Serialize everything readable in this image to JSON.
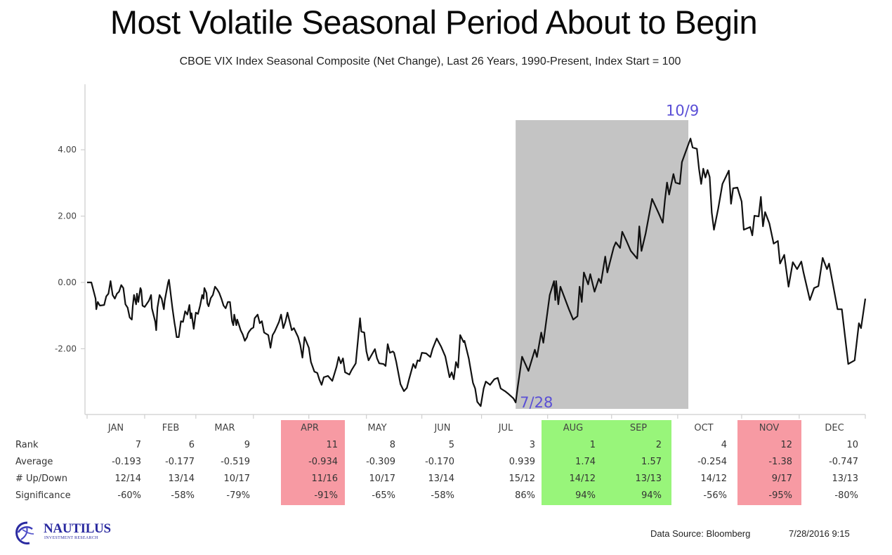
{
  "header": {
    "title": "Most Volatile Seasonal Period About to Begin",
    "subtitle": "CBOE VIX Index Seasonal Composite (Net Change), Last 26 Years, 1990-Present, Index Start = 100"
  },
  "chart_data": {
    "type": "line",
    "title": "Most Volatile Seasonal Period About to Begin",
    "subtitle": "CBOE VIX Index Seasonal Composite (Net Change), Last 26 Years, 1990-Present, Index Start = 100",
    "xlabel": "",
    "ylabel": "",
    "x_unit": "day of year",
    "xlim": [
      0,
      365
    ],
    "ylim": [
      -4.0,
      5.8
    ],
    "yticks": [
      4.0,
      2.0,
      0.0,
      -2.0
    ],
    "ytick_labels": [
      "4.00",
      "2.00",
      "0.00",
      "-2.00"
    ],
    "month_ticks": [
      0,
      27,
      51,
      78,
      104,
      131,
      157,
      185,
      216,
      246,
      277,
      307,
      334,
      365
    ],
    "grid": false,
    "legend": "none",
    "line_color": "#111111",
    "shaded_range": {
      "start_day": 201,
      "end_day": 282,
      "color": "#c4c4c4"
    },
    "annotations": [
      {
        "text": "7/28",
        "day": 201,
        "value": -3.6,
        "color": "#5a4fd6"
      },
      {
        "text": "10/9",
        "day": 282,
        "value": 5.2,
        "color": "#5a4fd6"
      }
    ],
    "series": [
      {
        "name": "VIX Seasonal Composite",
        "points": [
          [
            0,
            0.0
          ],
          [
            2,
            0.0
          ],
          [
            4,
            -0.49
          ],
          [
            4.3,
            -0.81
          ],
          [
            5,
            -0.59
          ],
          [
            6,
            -0.7
          ],
          [
            8,
            -0.68
          ],
          [
            9,
            -0.42
          ],
          [
            10,
            -0.34
          ],
          [
            11,
            0.04
          ],
          [
            12,
            -0.38
          ],
          [
            13,
            -0.49
          ],
          [
            14,
            -0.34
          ],
          [
            15,
            -0.28
          ],
          [
            16,
            -0.08
          ],
          [
            17,
            -0.17
          ],
          [
            18,
            -0.66
          ],
          [
            19,
            -0.76
          ],
          [
            20,
            -1.06
          ],
          [
            21,
            -1.12
          ],
          [
            21.4,
            -0.72
          ],
          [
            22,
            -0.38
          ],
          [
            23,
            -0.66
          ],
          [
            23.4,
            -0.34
          ],
          [
            24,
            -0.59
          ],
          [
            25,
            -0.17
          ],
          [
            25.4,
            -0.23
          ],
          [
            26,
            -0.7
          ],
          [
            27,
            -0.74
          ],
          [
            29,
            -0.55
          ],
          [
            30,
            -0.38
          ],
          [
            30.4,
            -0.78
          ],
          [
            32,
            -1.19
          ],
          [
            32.4,
            -1.44
          ],
          [
            33,
            -0.76
          ],
          [
            34,
            -0.38
          ],
          [
            35,
            -0.49
          ],
          [
            36,
            -0.81
          ],
          [
            36.4,
            -0.55
          ],
          [
            38,
            0.0
          ],
          [
            38.4,
            0.08
          ],
          [
            40,
            -0.76
          ],
          [
            41,
            -1.23
          ],
          [
            41.4,
            -1.38
          ],
          [
            42,
            -1.65
          ],
          [
            43,
            -1.65
          ],
          [
            44,
            -1.17
          ],
          [
            45,
            -1.19
          ],
          [
            46,
            -0.87
          ],
          [
            47,
            -0.97
          ],
          [
            48,
            -0.68
          ],
          [
            48.6,
            -1.08
          ],
          [
            49,
            -0.93
          ],
          [
            50,
            -1.4
          ],
          [
            51,
            -0.91
          ],
          [
            52,
            -0.95
          ],
          [
            53,
            -0.7
          ],
          [
            54,
            -0.38
          ],
          [
            54.6,
            -0.49
          ],
          [
            55,
            -0.17
          ],
          [
            56,
            -0.32
          ],
          [
            56.4,
            -0.63
          ],
          [
            57,
            -0.72
          ],
          [
            58,
            -0.47
          ],
          [
            59,
            -0.38
          ],
          [
            60,
            -0.13
          ],
          [
            61,
            -0.21
          ],
          [
            62,
            -0.32
          ],
          [
            63,
            -0.49
          ],
          [
            64,
            -0.7
          ],
          [
            65,
            -0.78
          ],
          [
            66,
            -0.59
          ],
          [
            67,
            -0.59
          ],
          [
            68,
            -1.17
          ],
          [
            68.6,
            -1.29
          ],
          [
            69,
            -0.97
          ],
          [
            70,
            -1.29
          ],
          [
            70.4,
            -1.12
          ],
          [
            71,
            -1.23
          ],
          [
            72,
            -1.44
          ],
          [
            73,
            -1.57
          ],
          [
            74,
            -1.76
          ],
          [
            75,
            -1.65
          ],
          [
            75.4,
            -1.55
          ],
          [
            76,
            -1.48
          ],
          [
            77,
            -1.4
          ],
          [
            78,
            -1.36
          ],
          [
            78.6,
            -1.08
          ],
          [
            80,
            -0.97
          ],
          [
            81,
            -1.23
          ],
          [
            82,
            -1.17
          ],
          [
            83,
            -1.51
          ],
          [
            85,
            -1.59
          ],
          [
            86,
            -1.97
          ],
          [
            87,
            -1.59
          ],
          [
            88,
            -1.48
          ],
          [
            90,
            -1.19
          ],
          [
            91,
            -0.97
          ],
          [
            92,
            -1.38
          ],
          [
            93,
            -1.19
          ],
          [
            94,
            -0.91
          ],
          [
            96,
            -1.44
          ],
          [
            97,
            -1.38
          ],
          [
            99,
            -1.65
          ],
          [
            100,
            -1.89
          ],
          [
            101,
            -2.27
          ],
          [
            102,
            -1.65
          ],
          [
            104,
            -1.97
          ],
          [
            105,
            -2.4
          ],
          [
            106.6,
            -2.69
          ],
          [
            108,
            -2.73
          ],
          [
            109,
            -2.94
          ],
          [
            110,
            -3.09
          ],
          [
            111,
            -2.86
          ],
          [
            113,
            -2.82
          ],
          [
            115,
            -2.97
          ],
          [
            117,
            -2.54
          ],
          [
            118,
            -2.25
          ],
          [
            119,
            -2.44
          ],
          [
            120,
            -2.29
          ],
          [
            121,
            -2.71
          ],
          [
            123,
            -2.78
          ],
          [
            124,
            -2.65
          ],
          [
            126,
            -2.44
          ],
          [
            128,
            -1.08
          ],
          [
            128.6,
            -1.48
          ],
          [
            130,
            -1.51
          ],
          [
            131,
            -2.08
          ],
          [
            132,
            -2.35
          ],
          [
            135,
            -2.01
          ],
          [
            136,
            -2.29
          ],
          [
            137,
            -2.44
          ],
          [
            139,
            -2.46
          ],
          [
            140,
            -2.52
          ],
          [
            141,
            -1.86
          ],
          [
            142,
            -2.12
          ],
          [
            143.4,
            -2.08
          ],
          [
            144,
            -2.12
          ],
          [
            145,
            -2.4
          ],
          [
            147,
            -3.07
          ],
          [
            148.6,
            -3.28
          ],
          [
            150,
            -3.18
          ],
          [
            151,
            -2.92
          ],
          [
            153,
            -2.46
          ],
          [
            154,
            -2.58
          ],
          [
            155,
            -2.35
          ],
          [
            156,
            -2.37
          ],
          [
            157,
            -2.12
          ],
          [
            159,
            -2.14
          ],
          [
            161,
            -2.25
          ],
          [
            162,
            -2.01
          ],
          [
            164,
            -1.69
          ],
          [
            166,
            -1.93
          ],
          [
            168,
            -2.23
          ],
          [
            170,
            -2.86
          ],
          [
            171,
            -2.71
          ],
          [
            172,
            -2.92
          ],
          [
            173,
            -2.4
          ],
          [
            174,
            -2.57
          ],
          [
            175,
            -1.59
          ],
          [
            176.6,
            -1.8
          ],
          [
            177,
            -1.76
          ],
          [
            179,
            -2.29
          ],
          [
            181,
            -3.03
          ],
          [
            182,
            -3.2
          ],
          [
            183,
            -3.6
          ],
          [
            184.6,
            -3.73
          ],
          [
            186,
            -3.2
          ],
          [
            187,
            -2.99
          ],
          [
            189,
            -3.09
          ],
          [
            191,
            -2.92
          ],
          [
            192.6,
            -2.88
          ],
          [
            194,
            -3.2
          ],
          [
            196,
            -3.28
          ],
          [
            197.4,
            -3.35
          ],
          [
            200,
            -3.5
          ],
          [
            201,
            -3.62
          ],
          [
            202,
            -3.14
          ],
          [
            204,
            -2.24
          ],
          [
            207,
            -2.67
          ],
          [
            210,
            -2.03
          ],
          [
            211,
            -2.25
          ],
          [
            213,
            -1.51
          ],
          [
            214,
            -1.82
          ],
          [
            217,
            -0.38
          ],
          [
            219,
            0.04
          ],
          [
            219.6,
            -0.53
          ],
          [
            220,
            0.04
          ],
          [
            221,
            -0.66
          ],
          [
            222,
            -0.13
          ],
          [
            226,
            -0.81
          ],
          [
            228,
            -1.12
          ],
          [
            230,
            -1.02
          ],
          [
            231,
            -0.13
          ],
          [
            232,
            -0.59
          ],
          [
            233,
            0.3
          ],
          [
            235,
            -0.06
          ],
          [
            236,
            0.25
          ],
          [
            238,
            -0.28
          ],
          [
            240,
            0.11
          ],
          [
            241,
            -0.02
          ],
          [
            243,
            0.78
          ],
          [
            244,
            0.3
          ],
          [
            247,
            1.06
          ],
          [
            248,
            1.21
          ],
          [
            250,
            1.04
          ],
          [
            251,
            1.53
          ],
          [
            253,
            1.25
          ],
          [
            255,
            0.95
          ],
          [
            258,
            0.72
          ],
          [
            259,
            1.69
          ],
          [
            260,
            0.95
          ],
          [
            262,
            1.48
          ],
          [
            265,
            2.52
          ],
          [
            268,
            2.1
          ],
          [
            270,
            1.8
          ],
          [
            271,
            2.48
          ],
          [
            272,
            3.01
          ],
          [
            273,
            2.65
          ],
          [
            275,
            3.27
          ],
          [
            276,
            3.01
          ],
          [
            278,
            2.97
          ],
          [
            279,
            3.63
          ],
          [
            283,
            4.34
          ],
          [
            284,
            4.07
          ],
          [
            286,
            4.03
          ],
          [
            287,
            3.43
          ],
          [
            288,
            2.97
          ],
          [
            289,
            3.43
          ],
          [
            290,
            3.16
          ],
          [
            291,
            3.39
          ],
          [
            292,
            3.18
          ],
          [
            293,
            2.1
          ],
          [
            294,
            1.59
          ],
          [
            296,
            2.22
          ],
          [
            298,
            2.97
          ],
          [
            301,
            3.37
          ],
          [
            302,
            2.37
          ],
          [
            303,
            2.84
          ],
          [
            305,
            2.86
          ],
          [
            307,
            2.44
          ],
          [
            308,
            1.59
          ],
          [
            311,
            1.67
          ],
          [
            312,
            1.42
          ],
          [
            313,
            2.01
          ],
          [
            315,
            1.99
          ],
          [
            316,
            2.58
          ],
          [
            317,
            1.69
          ],
          [
            318,
            2.12
          ],
          [
            320,
            1.78
          ],
          [
            322,
            1.17
          ],
          [
            324,
            1.25
          ],
          [
            325,
            0.57
          ],
          [
            327,
            0.83
          ],
          [
            329,
            -0.13
          ],
          [
            331,
            0.61
          ],
          [
            333,
            0.4
          ],
          [
            335,
            0.63
          ],
          [
            336,
            0.3
          ],
          [
            339,
            -0.53
          ],
          [
            341,
            -0.17
          ],
          [
            343,
            -0.11
          ],
          [
            345,
            0.74
          ],
          [
            347,
            0.4
          ],
          [
            348,
            0.57
          ],
          [
            352,
            -0.81
          ],
          [
            354,
            -0.81
          ],
          [
            357,
            -2.46
          ],
          [
            360,
            -2.35
          ],
          [
            362,
            -1.23
          ],
          [
            363,
            -1.38
          ],
          [
            365,
            -0.49
          ]
        ]
      }
    ],
    "table": {
      "row_labels": [
        "Rank",
        "Average",
        "# Up/Down",
        "Significance"
      ],
      "months": [
        "JAN",
        "FEB",
        "MAR",
        "APR",
        "MAY",
        "JUN",
        "JUL",
        "AUG",
        "SEP",
        "OCT",
        "NOV",
        "DEC"
      ],
      "rank": [
        "7",
        "6",
        "9",
        "11",
        "8",
        "5",
        "3",
        "1",
        "2",
        "4",
        "12",
        "10"
      ],
      "average": [
        "-0.193",
        "-0.177",
        "-0.519",
        "-0.934",
        "-0.309",
        "-0.170",
        "0.939",
        "1.74",
        "1.57",
        "-0.254",
        "-1.38",
        "-0.747"
      ],
      "up_down": [
        "12/14",
        "13/14",
        "10/17",
        "11/16",
        "10/17",
        "13/14",
        "15/12",
        "14/12",
        "13/13",
        "14/12",
        "9/17",
        "13/13"
      ],
      "significance": [
        "-60%",
        "-58%",
        "-79%",
        "-91%",
        "-65%",
        "-58%",
        "86%",
        "94%",
        "94%",
        "-56%",
        "-95%",
        "-80%"
      ],
      "highlights": {
        "APR": "#f79aa3",
        "NOV": "#f79aa3",
        "AUG": "#98f57a",
        "SEP": "#98f57a"
      }
    }
  },
  "footer": {
    "logo_name": "NAUTILUS",
    "logo_sub": "INVESTMENT RESEARCH",
    "source": "Data Source: Bloomberg",
    "date": "7/28/2016 9:15"
  }
}
